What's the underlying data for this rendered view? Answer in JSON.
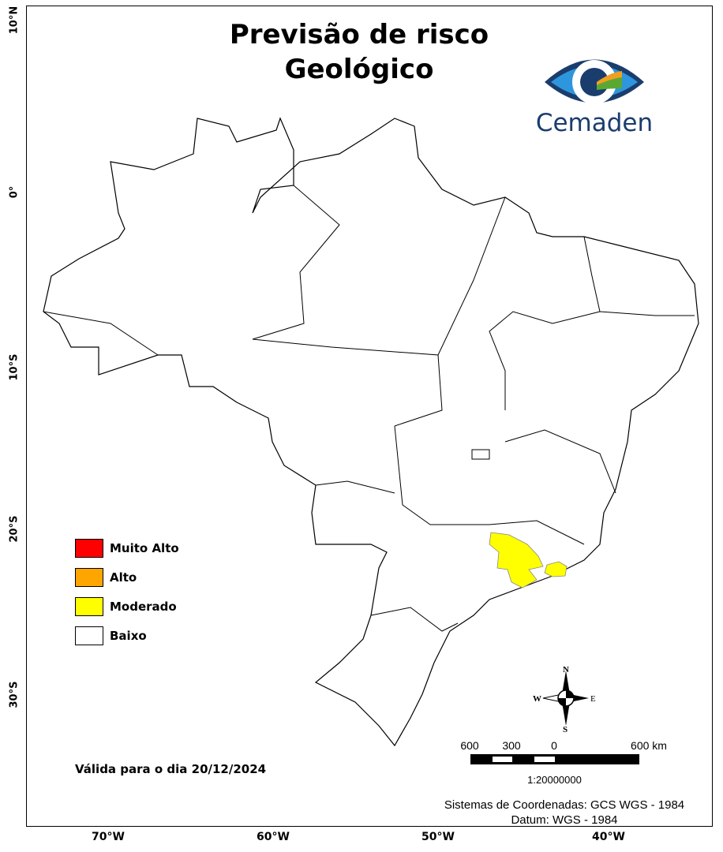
{
  "title": {
    "line1": "Previsão de risco",
    "line2": "Geológico"
  },
  "logo": {
    "text": "Cemaden"
  },
  "latitude_labels": [
    "10°N",
    "0°",
    "10°S",
    "20°S",
    "30°S"
  ],
  "longitude_labels": [
    "70°W",
    "60°W",
    "50°W",
    "40°W"
  ],
  "legend": [
    {
      "label": "Muito Alto",
      "color": "#ff0000"
    },
    {
      "label": "Alto",
      "color": "#ffa500"
    },
    {
      "label": "Moderado",
      "color": "#ffff00"
    },
    {
      "label": "Baixo",
      "color": "#ffffff"
    }
  ],
  "validity": "Válida para o dia 20/12/2024",
  "compass": {
    "n": "N",
    "s": "S",
    "e": "E",
    "w": "W"
  },
  "scale_bar": {
    "labels": [
      "600",
      "300",
      "0",
      "600 km"
    ],
    "ratio": "1:20000000"
  },
  "coordinate_system": "Sistemas de Coordenadas: GCS WGS - 1984",
  "datum": "Datum: WGS - 1984"
}
